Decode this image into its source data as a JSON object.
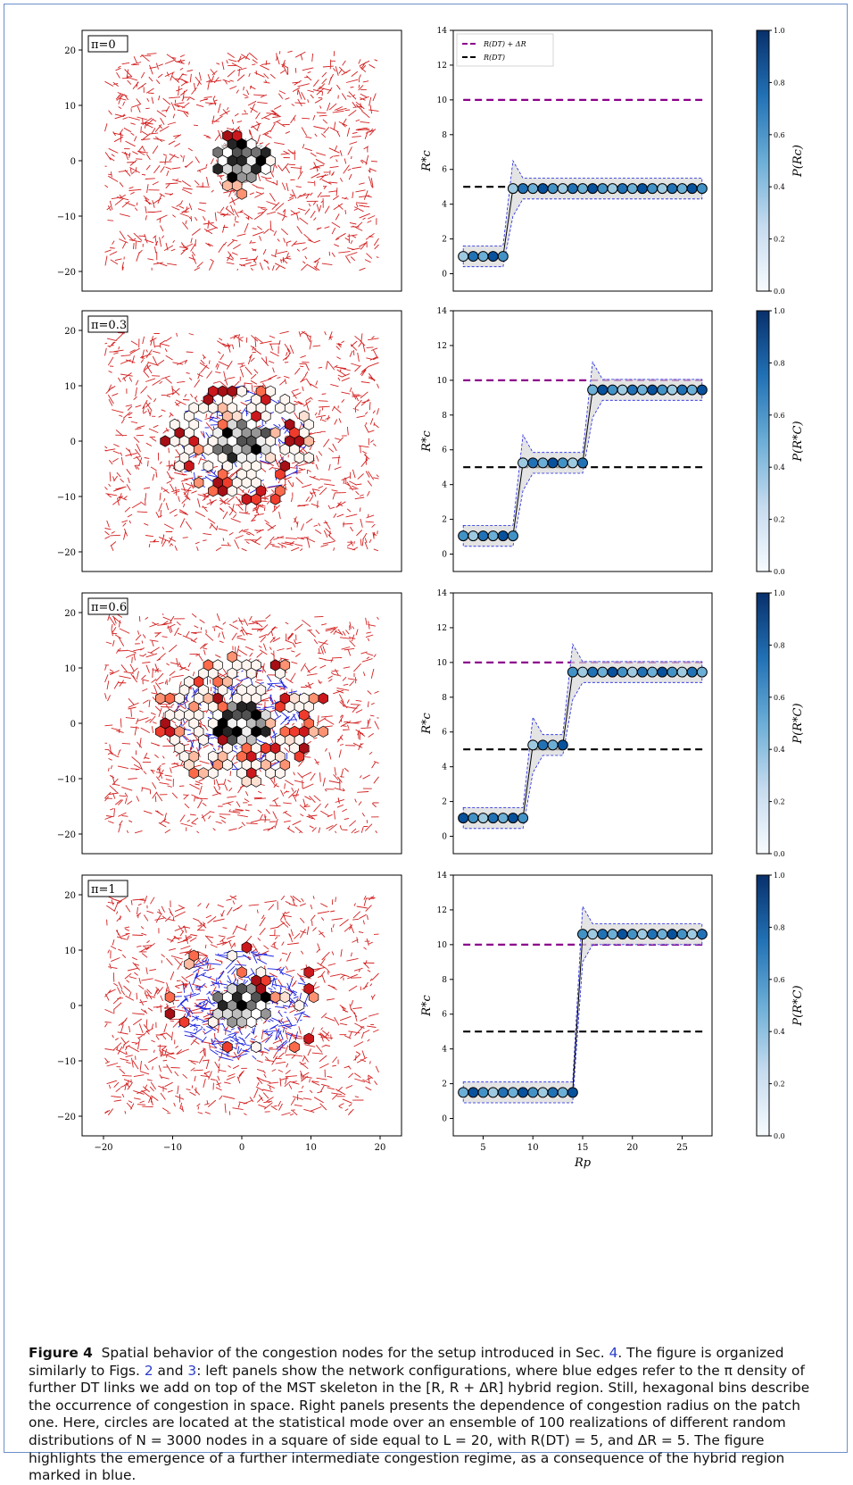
{
  "figure": {
    "panels": [
      {
        "label": "π=0"
      },
      {
        "label": "π=0.3"
      },
      {
        "label": "π=0.6"
      },
      {
        "label": "π=1"
      }
    ],
    "left_xticks": [
      "−20",
      "−10",
      "0",
      "10",
      "20"
    ],
    "left_yticks": [
      "20",
      "10",
      "0",
      "−10",
      "−20"
    ],
    "right_yticks": [
      "0",
      "2",
      "4",
      "6",
      "8",
      "10",
      "12",
      "14"
    ],
    "right_xticks": [
      "5",
      "10",
      "15",
      "20",
      "25"
    ],
    "colorbar_ticks": [
      "0.0",
      "0.2",
      "0.4",
      "0.6",
      "0.8",
      "1.0"
    ],
    "right_ylabel": "R*c",
    "right_xlabel": "Rp",
    "colorbar_label_0": "P(Rc)",
    "colorbar_label": "P(R*C)",
    "legend": [
      "R(DT) + ΔR",
      "R(DT)"
    ],
    "colors": {
      "mst": "#d42020",
      "dt": "#1a22e0",
      "upper_line": "#8b008b",
      "lower_line": "#000000"
    }
  },
  "chart_data": [
    {
      "type": "scatter",
      "panel": "π=0",
      "ylim": [
        0,
        14
      ],
      "xlim": [
        2,
        28
      ],
      "x": [
        3,
        4,
        5,
        6,
        7,
        8,
        9,
        10,
        11,
        12,
        13,
        14,
        15,
        16,
        17,
        18,
        19,
        20,
        21,
        22,
        23,
        24,
        25,
        26,
        27
      ],
      "y": [
        1,
        1,
        1,
        1,
        1,
        4.9,
        4.9,
        4.9,
        4.9,
        4.9,
        4.9,
        4.9,
        4.9,
        4.9,
        4.9,
        4.9,
        4.9,
        4.9,
        4.9,
        4.9,
        4.9,
        4.9,
        4.9,
        4.9,
        4.9
      ],
      "hlines": [
        {
          "name": "R(DT) + ΔR",
          "y": 10
        },
        {
          "name": "R(DT)",
          "y": 5
        }
      ]
    },
    {
      "type": "scatter",
      "panel": "π=0.3",
      "ylim": [
        0,
        14
      ],
      "xlim": [
        2,
        28
      ],
      "x": [
        3,
        4,
        5,
        6,
        7,
        8,
        9,
        10,
        11,
        12,
        13,
        14,
        15,
        16,
        17,
        18,
        19,
        20,
        21,
        22,
        23,
        24,
        25,
        26,
        27
      ],
      "y": [
        1.05,
        1.05,
        1.05,
        1.05,
        1.05,
        1.05,
        5.25,
        5.25,
        5.25,
        5.25,
        5.25,
        5.25,
        5.25,
        9.45,
        9.45,
        9.45,
        9.45,
        9.45,
        9.45,
        9.45,
        9.45,
        9.45,
        9.45,
        9.45,
        9.45
      ],
      "hlines": [
        {
          "name": "R(DT) + ΔR",
          "y": 10
        },
        {
          "name": "R(DT)",
          "y": 5
        }
      ]
    },
    {
      "type": "scatter",
      "panel": "π=0.6",
      "ylim": [
        0,
        14
      ],
      "xlim": [
        2,
        28
      ],
      "x": [
        3,
        4,
        5,
        6,
        7,
        8,
        9,
        10,
        11,
        12,
        13,
        14,
        15,
        16,
        17,
        18,
        19,
        20,
        21,
        22,
        23,
        24,
        25,
        26,
        27
      ],
      "y": [
        1.05,
        1.05,
        1.05,
        1.05,
        1.05,
        1.05,
        1.05,
        5.25,
        5.25,
        5.25,
        5.25,
        9.45,
        9.45,
        9.45,
        9.45,
        9.45,
        9.45,
        9.45,
        9.45,
        9.45,
        9.45,
        9.45,
        9.45,
        9.45,
        9.45
      ],
      "hlines": [
        {
          "name": "R(DT) + ΔR",
          "y": 10
        },
        {
          "name": "R(DT)",
          "y": 5
        }
      ]
    },
    {
      "type": "scatter",
      "panel": "π=1",
      "ylim": [
        0,
        14
      ],
      "xlim": [
        2,
        28
      ],
      "x": [
        3,
        4,
        5,
        6,
        7,
        8,
        9,
        10,
        11,
        12,
        13,
        14,
        15,
        16,
        17,
        18,
        19,
        20,
        21,
        22,
        23,
        24,
        25,
        26,
        27
      ],
      "y": [
        1.5,
        1.5,
        1.5,
        1.5,
        1.5,
        1.5,
        1.5,
        1.5,
        1.5,
        1.5,
        1.5,
        1.5,
        10.6,
        10.6,
        10.6,
        10.6,
        10.6,
        10.6,
        10.6,
        10.6,
        10.6,
        10.6,
        10.6,
        10.6,
        10.6
      ],
      "hlines": [
        {
          "name": "R(DT) + ΔR",
          "y": 10
        },
        {
          "name": "R(DT)",
          "y": 5
        }
      ]
    }
  ],
  "caption": {
    "label": "Figure 4",
    "p1": "Spatial behavior of the congestion nodes for the setup introduced in Sec.",
    "ref_sec": "4",
    "p2": ". The figure is organized similarly to Figs.",
    "ref_fig2": "2",
    "p3": "and",
    "ref_fig3": "3",
    "p4": ": left panels show the network configurations, where blue edges refer to the π density of further DT links we add on top of the MST skeleton in the [R, R + ΔR] hybrid region. Still, hexagonal bins describe the occurrence of congestion in space. Right panels presents the dependence of congestion radius on the patch one. Here, circles are located at the statistical mode over an ensemble of 100 realizations of different random distributions of N = 3000 nodes in a square of side equal to L = 20, with R(DT) = 5, and ΔR = 5. The figure highlights the emergence of a further intermediate congestion regime, as a consequence of the hybrid region marked in blue."
  }
}
